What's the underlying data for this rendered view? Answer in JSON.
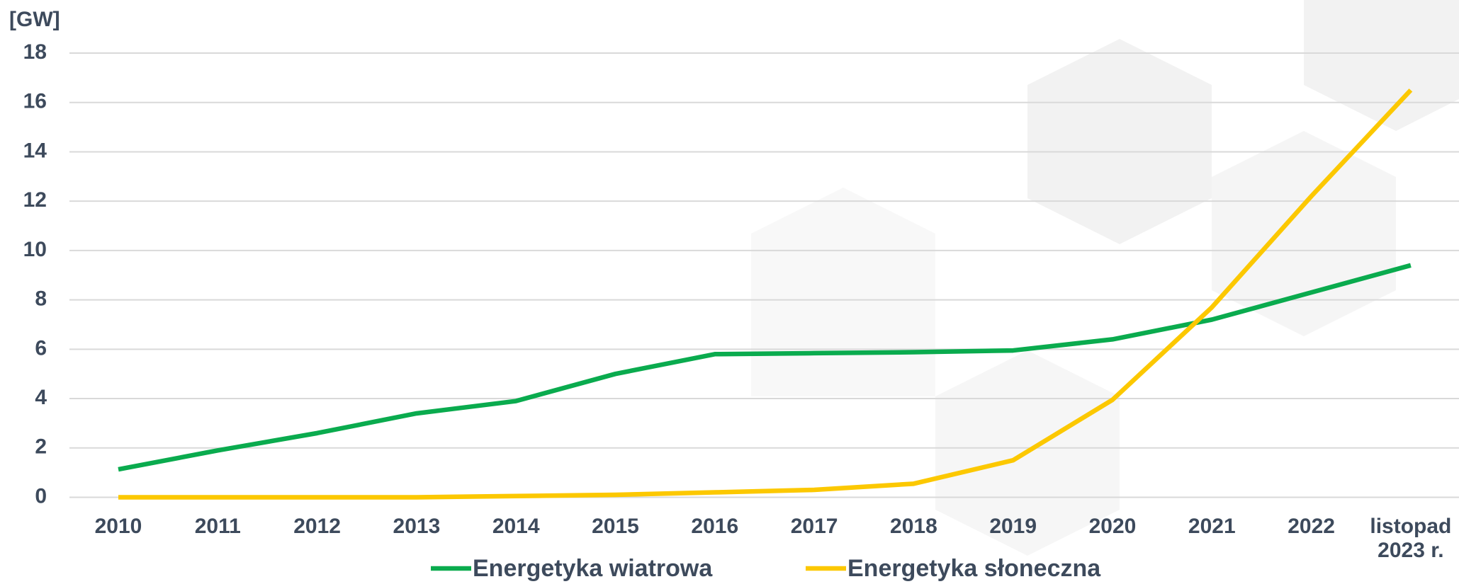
{
  "chart_data": {
    "type": "line",
    "y_label": "[GW]",
    "categories": [
      "2010",
      "2011",
      "2012",
      "2013",
      "2014",
      "2015",
      "2016",
      "2017",
      "2018",
      "2019",
      "2020",
      "2021",
      "2022",
      "listopad 2023 r."
    ],
    "series": [
      {
        "name": "Energetyka wiatrowa",
        "color": "#0aab4e",
        "values": [
          1.13,
          1.9,
          2.6,
          3.4,
          3.9,
          5.0,
          5.8,
          5.84,
          5.88,
          5.95,
          6.4,
          7.2,
          8.3,
          9.4
        ]
      },
      {
        "name": "Energetyka słoneczna",
        "color": "#fcc800",
        "values": [
          0,
          0,
          0,
          0,
          0.05,
          0.1,
          0.2,
          0.3,
          0.55,
          1.5,
          3.95,
          7.7,
          12.2,
          16.5
        ]
      }
    ],
    "ylim": [
      0,
      18
    ],
    "yticks": [
      0,
      2,
      4,
      6,
      8,
      10,
      12,
      14,
      16,
      18
    ],
    "grid": true
  }
}
